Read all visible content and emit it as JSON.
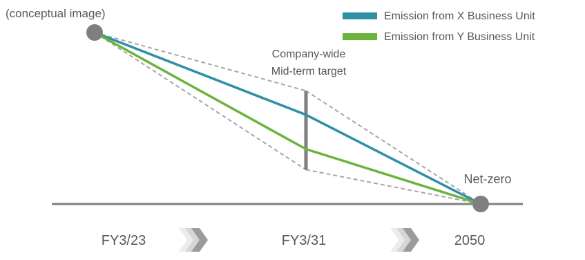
{
  "chart_data": {
    "type": "line",
    "caption": "(conceptual image)",
    "x_labels": [
      "FY3/23",
      "FY3/31",
      "2050"
    ],
    "series": [
      {
        "name": "Emission from X Business Unit",
        "color": "#2e8fa6",
        "y": [
          100,
          52,
          0
        ]
      },
      {
        "name": "Emission from Y Business Unit",
        "color": "#6cb33e",
        "y": [
          100,
          32,
          0
        ]
      }
    ],
    "target": {
      "label": "Company-wide Mid-term target",
      "range": [
        20,
        66
      ]
    },
    "end_label": "Net-zero",
    "legend_placement": "top-right",
    "colors": {
      "axis": "#7f7f7f",
      "point": "#7f7f7f",
      "dashed": "#a6a6a6",
      "label": "#595959"
    }
  }
}
